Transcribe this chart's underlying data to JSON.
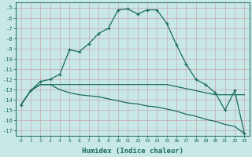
{
  "xlabel": "Humidex (Indice chaleur)",
  "background_color": "#c8e8e8",
  "line_color": "#1a6b5a",
  "grid_color": "#d0e8e8",
  "xlim": [
    -0.5,
    23.5
  ],
  "ylim": [
    -17.5,
    -4.5
  ],
  "xticks": [
    0,
    1,
    2,
    3,
    4,
    5,
    6,
    7,
    8,
    9,
    10,
    11,
    12,
    13,
    14,
    15,
    16,
    17,
    18,
    19,
    20,
    21,
    22,
    23
  ],
  "yticks": [
    -5,
    -6,
    -7,
    -8,
    -9,
    -10,
    -11,
    -12,
    -13,
    -14,
    -15,
    -16,
    -17
  ],
  "line1_x": [
    0,
    1,
    2,
    3,
    4,
    5,
    6,
    7,
    8,
    9,
    10,
    11,
    12,
    13,
    14,
    15,
    16,
    17,
    18,
    19,
    20,
    21,
    22,
    23
  ],
  "line1_y": [
    -14.5,
    -13.1,
    -12.2,
    -12.0,
    -11.5,
    -9.1,
    -9.3,
    -8.5,
    -7.5,
    -7.0,
    -5.2,
    -5.1,
    -5.6,
    -5.2,
    -5.2,
    -6.5,
    -8.6,
    -10.5,
    -12.0,
    -12.5,
    -13.3,
    -15.0,
    -13.1,
    -17.3
  ],
  "line2_x": [
    0,
    1,
    2,
    3,
    4,
    5,
    6,
    7,
    8,
    9,
    10,
    11,
    12,
    13,
    14,
    15,
    16,
    17,
    18,
    19,
    20,
    21,
    22,
    23
  ],
  "line2_y": [
    -14.5,
    -13.1,
    -12.5,
    -12.5,
    -12.5,
    -12.5,
    -12.5,
    -12.5,
    -12.5,
    -12.5,
    -12.5,
    -12.5,
    -12.5,
    -12.5,
    -12.5,
    -12.5,
    -12.7,
    -12.9,
    -13.1,
    -13.3,
    -13.5,
    -13.5,
    -13.5,
    -13.5
  ],
  "line3_x": [
    0,
    1,
    2,
    3,
    4,
    5,
    6,
    7,
    8,
    9,
    10,
    11,
    12,
    13,
    14,
    15,
    16,
    17,
    18,
    19,
    20,
    21,
    22,
    23
  ],
  "line3_y": [
    -14.5,
    -13.1,
    -12.5,
    -12.5,
    -13.0,
    -13.3,
    -13.5,
    -13.6,
    -13.7,
    -13.9,
    -14.1,
    -14.3,
    -14.4,
    -14.6,
    -14.7,
    -14.9,
    -15.1,
    -15.4,
    -15.6,
    -15.9,
    -16.1,
    -16.4,
    -16.6,
    -17.3
  ]
}
